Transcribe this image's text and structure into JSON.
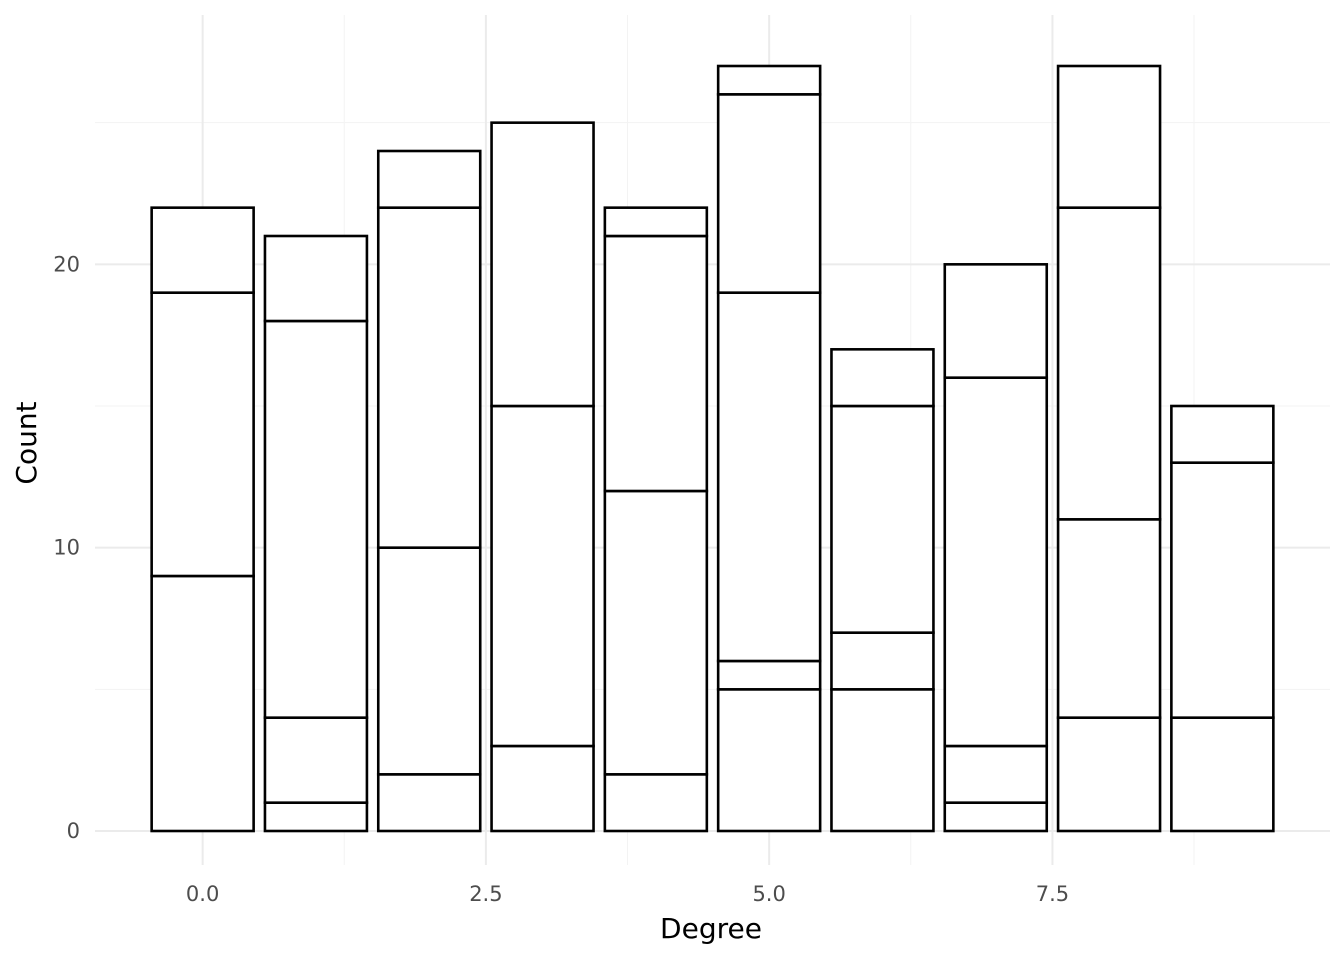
{
  "chart_data": {
    "type": "bar",
    "stacked": true,
    "title": "",
    "xlabel": "Degree",
    "ylabel": "Count",
    "x": [
      0,
      1,
      2,
      3,
      4,
      5,
      6,
      7,
      8,
      9
    ],
    "stack_boundaries": [
      [
        9,
        19,
        22
      ],
      [
        1,
        4,
        18,
        21
      ],
      [
        2,
        10,
        22,
        24
      ],
      [
        3,
        15,
        25
      ],
      [
        2,
        12,
        21,
        22
      ],
      [
        5,
        6,
        19,
        26,
        27
      ],
      [
        5,
        7,
        15,
        17
      ],
      [
        1,
        3,
        16,
        20
      ],
      [
        4,
        11,
        22,
        27
      ],
      [
        4,
        13,
        15
      ]
    ],
    "totals": [
      22,
      21,
      24,
      25,
      22,
      27,
      17,
      20,
      27,
      15
    ],
    "xlim": [
      -0.95,
      9.95
    ],
    "ylim": [
      -1.2,
      28.8
    ],
    "x_ticks": [
      0,
      2.5,
      5,
      7.5
    ],
    "x_tick_labels": [
      "0.0",
      "2.5",
      "5.0",
      "7.5"
    ],
    "y_ticks": [
      0,
      10,
      20
    ],
    "y_tick_labels": [
      "0",
      "10",
      "20"
    ],
    "grid": true,
    "legend": "none",
    "colors": {
      "bar_fill": "#ffffff",
      "bar_outline": "#000000",
      "grid": "#ebebeb",
      "tick_text": "#4d4d4d"
    }
  }
}
